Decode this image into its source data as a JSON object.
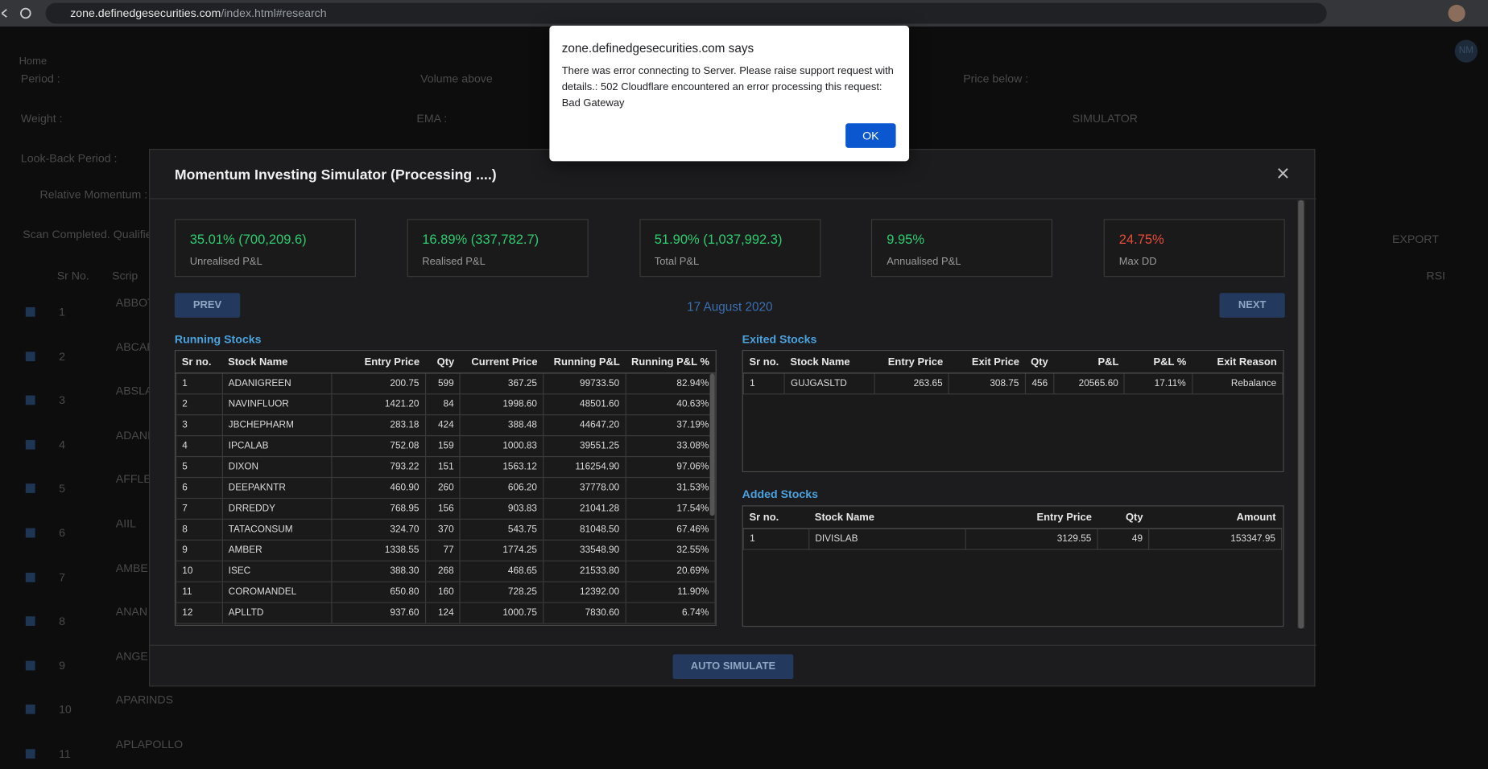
{
  "browser": {
    "domain": "zone.definedgesecurities.com",
    "path": "/index.html#research"
  },
  "background": {
    "nav": "Home",
    "avatar": "NM",
    "labels": [
      "Period :",
      "Weight :",
      "Look-Back Period :",
      "Relative Momentum :",
      "Scan Completed. Qualifie",
      "Volume above",
      "EMA :",
      "Price below :",
      "SIMULATOR",
      "EXPORT"
    ],
    "headers": [
      "Sr No.",
      "Scrip",
      "RSI"
    ],
    "rows": [
      {
        "sr": "1",
        "scrip": "ABBOT"
      },
      {
        "sr": "2",
        "scrip": "ABCAP"
      },
      {
        "sr": "3",
        "scrip": "ABSLA"
      },
      {
        "sr": "4",
        "scrip": "ADANI"
      },
      {
        "sr": "5",
        "scrip": "AFFLE"
      },
      {
        "sr": "6",
        "scrip": "AIIL"
      },
      {
        "sr": "7",
        "scrip": "AMBER"
      },
      {
        "sr": "8",
        "scrip": "ANAN"
      },
      {
        "sr": "9",
        "scrip": "ANGEL"
      },
      {
        "sr": "10",
        "scrip": "APARINDS"
      },
      {
        "sr": "11",
        "scrip": "APLAPOLLO"
      }
    ]
  },
  "alert": {
    "title": "zone.definedgesecurities.com says",
    "message": "There was error connecting to Server. Please raise support request with details.: 502  Cloudflare encountered an error processing this request: Bad Gateway",
    "button": "OK"
  },
  "modal": {
    "title": "Momentum Investing Simulator (Processing ....)",
    "close": "×",
    "stats": [
      {
        "value": "35.01% (700,209.6)",
        "label": "Unrealised P&L",
        "color": "#2ecc71"
      },
      {
        "value": "16.89% (337,782.7)",
        "label": "Realised P&L",
        "color": "#2ecc71"
      },
      {
        "value": "51.90% (1,037,992.3)",
        "label": "Total P&L",
        "color": "#2ecc71"
      },
      {
        "value": "9.95%",
        "label": "Annualised P&L",
        "color": "#2ecc71"
      },
      {
        "value": "24.75%",
        "label": "Max DD",
        "color": "#e74c3c"
      }
    ],
    "prev": "PREV",
    "date": "17 August 2020",
    "next": "NEXT",
    "running": {
      "title": "Running Stocks",
      "headers": [
        "Sr no.",
        "Stock Name",
        "Entry Price",
        "Qty",
        "Current Price",
        "Running P&L",
        "Running P&L %"
      ],
      "rows": [
        [
          "1",
          "ADANIGREEN",
          "200.75",
          "599",
          "367.25",
          "99733.50",
          "82.94%"
        ],
        [
          "2",
          "NAVINFLUOR",
          "1421.20",
          "84",
          "1998.60",
          "48501.60",
          "40.63%"
        ],
        [
          "3",
          "JBCHEPHARM",
          "283.18",
          "424",
          "388.48",
          "44647.20",
          "37.19%"
        ],
        [
          "4",
          "IPCALAB",
          "752.08",
          "159",
          "1000.83",
          "39551.25",
          "33.08%"
        ],
        [
          "5",
          "DIXON",
          "793.22",
          "151",
          "1563.12",
          "116254.90",
          "97.06%"
        ],
        [
          "6",
          "DEEPAKNTR",
          "460.90",
          "260",
          "606.20",
          "37778.00",
          "31.53%"
        ],
        [
          "7",
          "DRREDDY",
          "768.95",
          "156",
          "903.83",
          "21041.28",
          "17.54%"
        ],
        [
          "8",
          "TATACONSUM",
          "324.70",
          "370",
          "543.75",
          "81048.50",
          "67.46%"
        ],
        [
          "9",
          "AMBER",
          "1338.55",
          "77",
          "1774.25",
          "33548.90",
          "32.55%"
        ],
        [
          "10",
          "ISEC",
          "388.30",
          "268",
          "468.65",
          "21533.80",
          "20.69%"
        ],
        [
          "11",
          "COROMANDEL",
          "650.80",
          "160",
          "728.25",
          "12392.00",
          "11.90%"
        ],
        [
          "12",
          "APLLTD",
          "937.60",
          "124",
          "1000.75",
          "7830.60",
          "6.74%"
        ]
      ]
    },
    "exited": {
      "title": "Exited Stocks",
      "headers": [
        "Sr no.",
        "Stock Name",
        "Entry Price",
        "Exit Price",
        "Qty",
        "P&L",
        "P&L %",
        "Exit Reason"
      ],
      "rows": [
        [
          "1",
          "GUJGASLTD",
          "263.65",
          "308.75",
          "456",
          "20565.60",
          "17.11%",
          "Rebalance"
        ]
      ]
    },
    "added": {
      "title": "Added Stocks",
      "headers": [
        "Sr no.",
        "Stock Name",
        "Entry Price",
        "Qty",
        "Amount"
      ],
      "rows": [
        [
          "1",
          "DIVISLAB",
          "3129.55",
          "49",
          "153347.95"
        ]
      ]
    },
    "simulate": "AUTO SIMULATE"
  }
}
